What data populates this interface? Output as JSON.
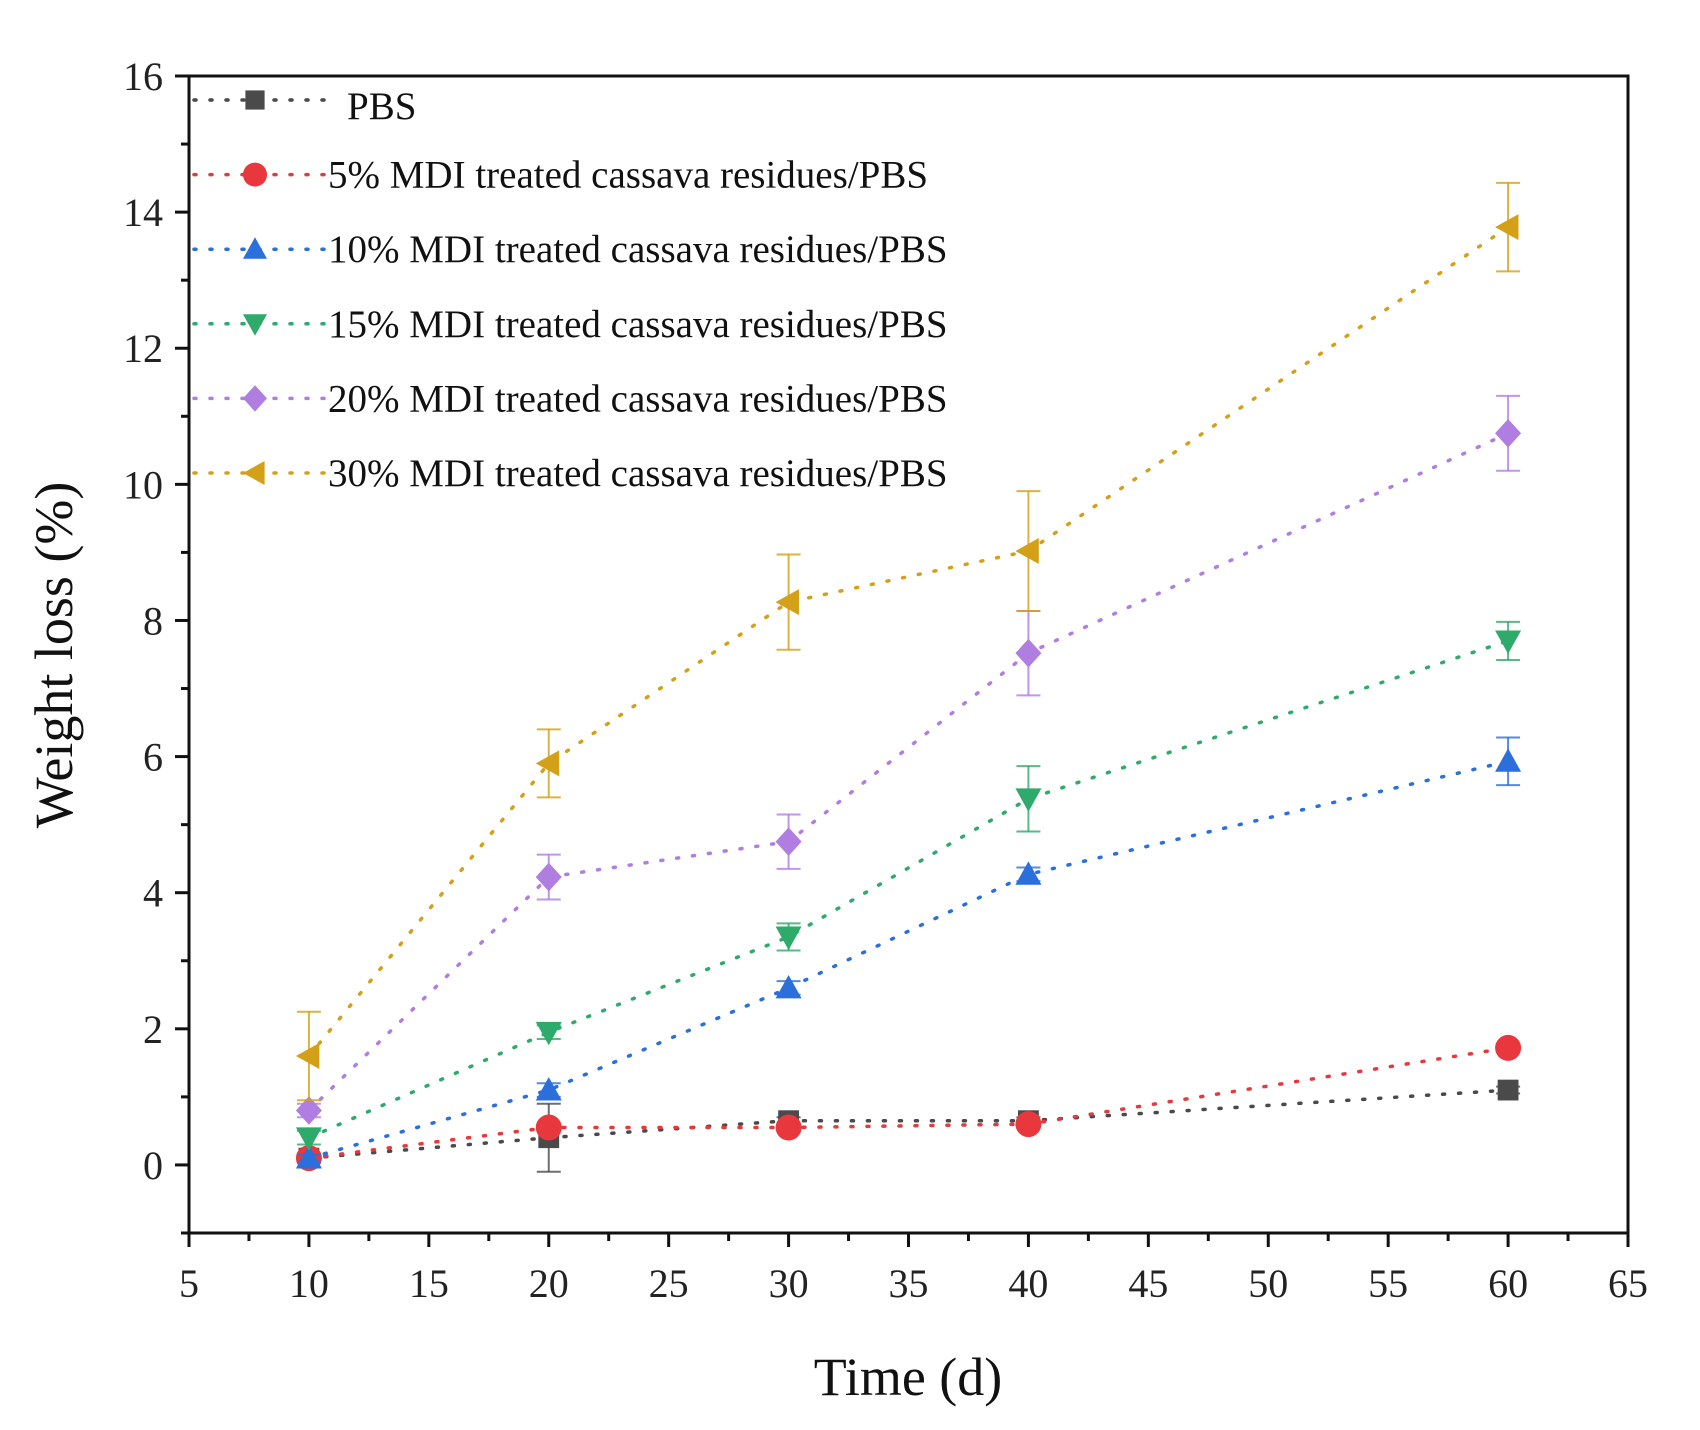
{
  "chart_data": {
    "type": "line",
    "title": "",
    "xlabel": "Time (d)",
    "ylabel": "Weight loss (%)",
    "xlim": [
      5,
      65
    ],
    "ylim": [
      -1,
      16
    ],
    "xticks": [
      5,
      10,
      15,
      20,
      25,
      30,
      35,
      40,
      45,
      50,
      55,
      60,
      65
    ],
    "yticks": [
      0,
      2,
      4,
      6,
      8,
      10,
      12,
      14,
      16
    ],
    "grid": false,
    "legend_position": "top-left",
    "x": [
      10,
      20,
      30,
      40,
      60
    ],
    "series": [
      {
        "name": "PBS",
        "marker": "square",
        "color": "#4a4a4a",
        "values": [
          0.1,
          0.4,
          0.65,
          0.65,
          1.1
        ],
        "errors": [
          0.05,
          0.5,
          0.05,
          0.05,
          0.05
        ]
      },
      {
        "name": "5% MDI treated cassava residues/PBS",
        "marker": "circle",
        "color": "#e8383d",
        "values": [
          0.1,
          0.55,
          0.55,
          0.6,
          1.72
        ],
        "errors": [
          0.05,
          0.05,
          0.05,
          0.05,
          0.05
        ]
      },
      {
        "name": "10% MDI treated cassava residues/PBS",
        "marker": "triangle-up",
        "color": "#2a6fdb",
        "values": [
          0.1,
          1.1,
          2.6,
          4.27,
          5.93
        ],
        "errors": [
          0.05,
          0.1,
          0.1,
          0.1,
          0.35
        ]
      },
      {
        "name": "15% MDI treated cassava residues/PBS",
        "marker": "triangle-down",
        "color": "#2eaa6a",
        "values": [
          0.4,
          1.95,
          3.35,
          5.38,
          7.7
        ],
        "errors": [
          0.1,
          0.1,
          0.2,
          0.48,
          0.28
        ]
      },
      {
        "name": "20% MDI treated cassava residues/PBS",
        "marker": "diamond",
        "color": "#b07ee0",
        "values": [
          0.8,
          4.23,
          4.75,
          7.52,
          10.75
        ],
        "errors": [
          0.1,
          0.33,
          0.4,
          0.62,
          0.55
        ]
      },
      {
        "name": "30% MDI treated cassava residues/PBS",
        "marker": "triangle-left",
        "color": "#d4a017",
        "values": [
          1.6,
          5.9,
          8.27,
          9.02,
          13.78
        ],
        "errors": [
          0.65,
          0.5,
          0.7,
          0.88,
          0.65
        ]
      }
    ]
  }
}
